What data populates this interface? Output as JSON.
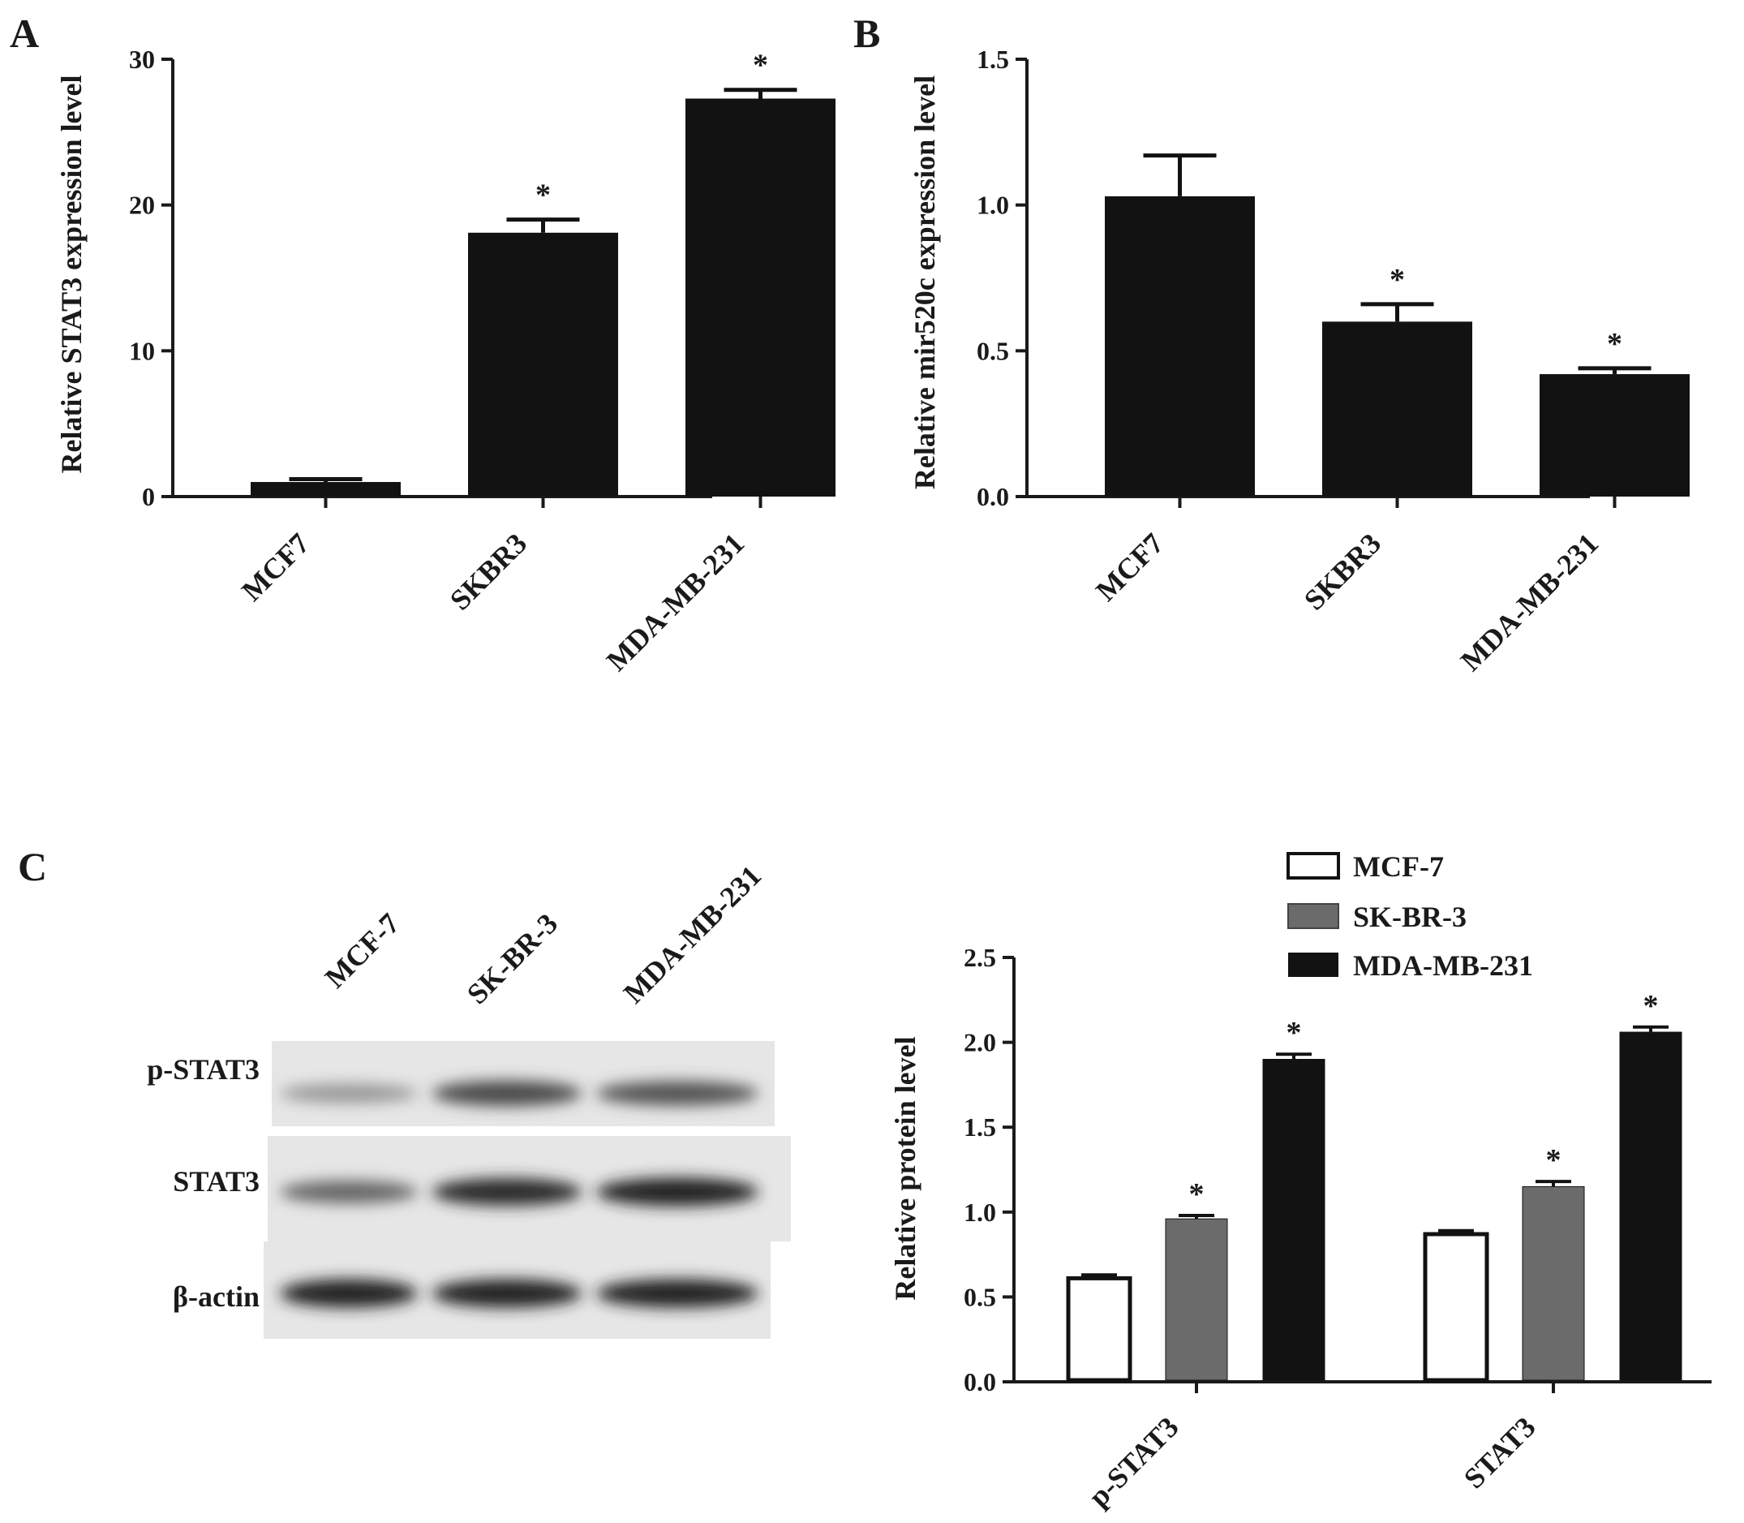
{
  "panels": {
    "a": {
      "letter": "A"
    },
    "b": {
      "letter": "B"
    },
    "c": {
      "letter": "C"
    }
  },
  "chart_data": [
    {
      "id": "A",
      "type": "bar",
      "ylabel": "Relative STAT3  expression level",
      "xlabel": "",
      "categories": [
        "MCF7",
        "SKBR3",
        "MDA-MB-231"
      ],
      "values": [
        1.0,
        18.1,
        27.3
      ],
      "errors": [
        0.2,
        0.9,
        0.6
      ],
      "significant": [
        false,
        true,
        true
      ],
      "significance_marker": "*",
      "ylim": [
        0,
        30
      ],
      "yticks": [
        "0",
        "10",
        "20",
        "30"
      ],
      "bar_color": "#121212",
      "grid": false
    },
    {
      "id": "B",
      "type": "bar",
      "ylabel": "Relative mir520c expression level",
      "xlabel": "",
      "categories": [
        "MCF7",
        "SKBR3",
        "MDA-MB-231"
      ],
      "values": [
        1.03,
        0.6,
        0.42
      ],
      "errors": [
        0.14,
        0.06,
        0.02
      ],
      "significant": [
        false,
        true,
        true
      ],
      "significance_marker": "*",
      "ylim": [
        0,
        1.5
      ],
      "yticks": [
        "0.0",
        "0.5",
        "1.0",
        "1.5"
      ],
      "bar_color": "#121212",
      "grid": false
    },
    {
      "id": "C",
      "type": "bar",
      "ylabel": "Relative protein level",
      "xlabel": "",
      "categories": [
        "p-STAT3",
        "STAT3"
      ],
      "series": [
        {
          "name": "MCF-7",
          "values": [
            0.61,
            0.87
          ],
          "errors": [
            0.02,
            0.02
          ],
          "significant": [
            false,
            false
          ],
          "color": "#ffffff"
        },
        {
          "name": "SK-BR-3",
          "values": [
            0.96,
            1.15
          ],
          "errors": [
            0.02,
            0.03
          ],
          "significant": [
            true,
            true
          ],
          "color": "#6b6b6b"
        },
        {
          "name": "MDA-MB-231",
          "values": [
            1.9,
            2.06
          ],
          "errors": [
            0.03,
            0.03
          ],
          "significant": [
            true,
            true
          ],
          "color": "#121212"
        }
      ],
      "significance_marker": "*",
      "ylim": [
        0,
        2.5
      ],
      "yticks": [
        "0.0",
        "0.5",
        "1.0",
        "1.5",
        "2.0",
        "2.5"
      ],
      "legend_position": "top",
      "grid": false
    }
  ],
  "western_blot": {
    "lanes": [
      "MCF-7",
      "SK-BR-3",
      "MDA-MB-231"
    ],
    "rows": [
      {
        "label": "p-STAT3",
        "intensities": [
          0.35,
          0.75,
          0.7
        ]
      },
      {
        "label": "STAT3",
        "intensities": [
          0.6,
          0.9,
          0.95
        ]
      },
      {
        "label": "β-actin",
        "intensities": [
          0.95,
          0.95,
          0.95
        ]
      }
    ]
  }
}
